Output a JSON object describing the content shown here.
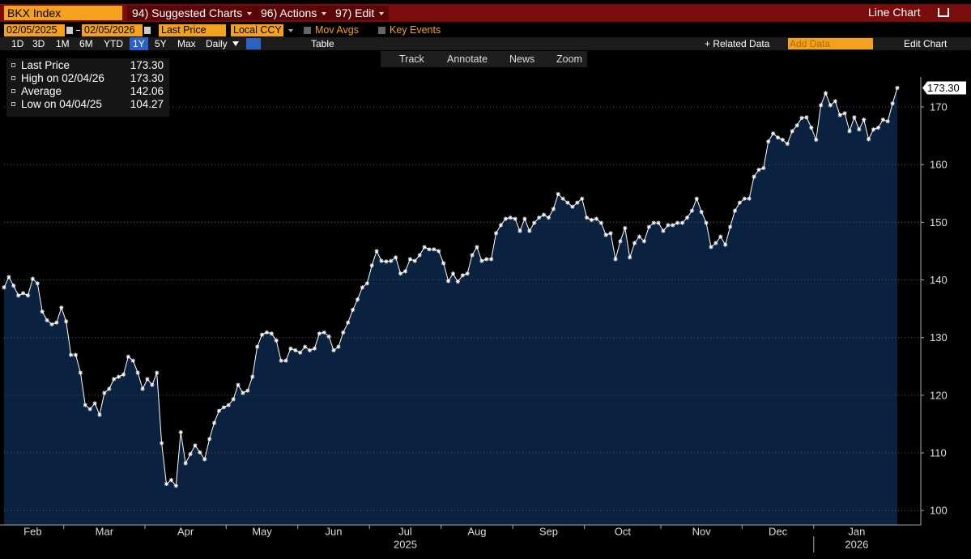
{
  "ui": {
    "ticker": "BKX Index",
    "menus": [
      "94) Suggested Charts",
      "96) Actions",
      "97) Edit"
    ],
    "chart_type": "Line Chart",
    "start_date": "02/05/2025",
    "end_date": "02/05/2026",
    "field": "Last Price",
    "currency": "Local CCY",
    "toggles": [
      "Mov Avgs",
      "Key Events"
    ],
    "periods": [
      "1D",
      "3D",
      "1M",
      "6M",
      "YTD",
      "1Y",
      "5Y",
      "Max"
    ],
    "frequency": "Daily",
    "table": "Table",
    "related": "+ Related Data",
    "add_data": "Add Data",
    "edit_chart": "Edit Chart",
    "tools": [
      "Track",
      "Annotate",
      "News",
      "Zoom"
    ]
  },
  "chart_data": {
    "type": "line",
    "legend_stats": [
      {
        "label": "Last Price",
        "value": "173.30"
      },
      {
        "label": "High on 02/04/26",
        "value": "173.30"
      },
      {
        "label": "Average",
        "value": "142.06"
      },
      {
        "label": "Low on 04/04/25",
        "value": "104.27"
      }
    ],
    "last_label": "173.30",
    "years": [
      "2025",
      "2026"
    ],
    "categories": [
      "Feb",
      null,
      null,
      null,
      null,
      null,
      null,
      null,
      null,
      null,
      null,
      null,
      null,
      "Mar",
      null,
      null,
      null,
      null,
      null,
      null,
      null,
      null,
      null,
      null,
      null,
      null,
      null,
      null,
      null,
      null,
      "Apr",
      null,
      null,
      null,
      null,
      null,
      null,
      null,
      null,
      null,
      null,
      null,
      null,
      null,
      null,
      null,
      null,
      "May",
      null,
      null,
      null,
      null,
      null,
      null,
      null,
      null,
      null,
      null,
      null,
      null,
      null,
      null,
      "Jun",
      null,
      null,
      null,
      null,
      null,
      null,
      null,
      null,
      null,
      null,
      null,
      null,
      null,
      null,
      "Jul",
      null,
      null,
      null,
      null,
      null,
      null,
      null,
      null,
      null,
      null,
      null,
      null,
      null,
      null,
      "Aug",
      null,
      null,
      null,
      null,
      null,
      null,
      null,
      null,
      null,
      null,
      null,
      null,
      null,
      null,
      "Sep",
      null,
      null,
      null,
      null,
      null,
      null,
      null,
      null,
      null,
      null,
      null,
      null,
      null,
      null,
      "Oct",
      null,
      null,
      null,
      null,
      null,
      null,
      null,
      null,
      null,
      null,
      null,
      null,
      null,
      null,
      null,
      "Nov",
      null,
      null,
      null,
      null,
      null,
      null,
      null,
      null,
      null,
      null,
      null,
      null,
      null,
      null,
      null,
      null,
      "Dec",
      null,
      null,
      null,
      null,
      null,
      null,
      null,
      null,
      null,
      null,
      null,
      null,
      null,
      null,
      "Jan",
      null,
      null,
      null,
      null,
      null,
      null,
      null,
      null,
      null,
      null,
      null,
      null,
      null,
      null,
      null,
      null,
      null
    ],
    "series": [
      {
        "name": "Last Price",
        "color": "#ffffff",
        "fill": "#0b2140",
        "values": [
          138.7,
          140.5,
          139,
          137.3,
          137.7,
          137.3,
          140.2,
          139.4,
          134.5,
          133,
          132.3,
          132.6,
          135.2,
          132.8,
          127,
          127,
          123.9,
          118.3,
          117.6,
          118.6,
          116.6,
          120.4,
          121.1,
          122.8,
          123.2,
          123.6,
          126.7,
          126,
          123.9,
          121.1,
          122.8,
          121.8,
          123.9,
          111.7,
          104.6,
          105.3,
          104.3,
          113.6,
          108.2,
          109.8,
          111.3,
          110.1,
          108.9,
          112.4,
          115.2,
          117.3,
          117.9,
          118.3,
          119.3,
          121.8,
          120.4,
          120.8,
          123.2,
          128.4,
          130.5,
          130.9,
          130.7,
          129.5,
          126,
          126,
          128.1,
          127.8,
          127.4,
          128.4,
          127.8,
          128.1,
          130.7,
          130.9,
          130.2,
          127.8,
          128.4,
          130.9,
          132.6,
          134.8,
          136.6,
          138.7,
          139.4,
          142.5,
          145,
          143.3,
          143.2,
          143.3,
          143.9,
          141.1,
          141.5,
          143.6,
          143.3,
          144.3,
          145.7,
          145.3,
          145.3,
          145,
          142.9,
          139.8,
          141.1,
          139.7,
          140.8,
          141.1,
          144.3,
          145.7,
          143.3,
          143.6,
          143.6,
          148.1,
          149.5,
          150.6,
          150.8,
          150.6,
          148.5,
          150.6,
          148.5,
          149.9,
          150.8,
          151.3,
          150.8,
          152.3,
          154.9,
          154.1,
          153.4,
          152.7,
          153.4,
          154.1,
          150.8,
          150.4,
          150.6,
          149.9,
          147.8,
          148.1,
          143.6,
          146.7,
          149,
          143.9,
          146.4,
          147.5,
          146.7,
          149.2,
          149.9,
          149.9,
          148.5,
          149.5,
          149.5,
          149.9,
          149.9,
          150.8,
          152,
          154.1,
          151.8,
          149.9,
          145.7,
          146.4,
          147.5,
          146.1,
          149.2,
          152,
          153.4,
          154.1,
          154.1,
          157.9,
          159.1,
          159.4,
          164,
          165.4,
          164.7,
          164.3,
          163.6,
          165.8,
          166.8,
          168.1,
          168.2,
          166.4,
          164.3,
          170.3,
          172.4,
          170.3,
          171,
          168.6,
          168.9,
          165.8,
          168.2,
          166.1,
          167.8,
          164.4,
          166.1,
          166.4,
          167.8,
          167.5,
          170.6,
          173.3
        ]
      }
    ],
    "ylim": [
      97.5,
      175.2
    ],
    "yticks": [
      100,
      110,
      120,
      130,
      140,
      150,
      160,
      170
    ],
    "grid": true
  }
}
